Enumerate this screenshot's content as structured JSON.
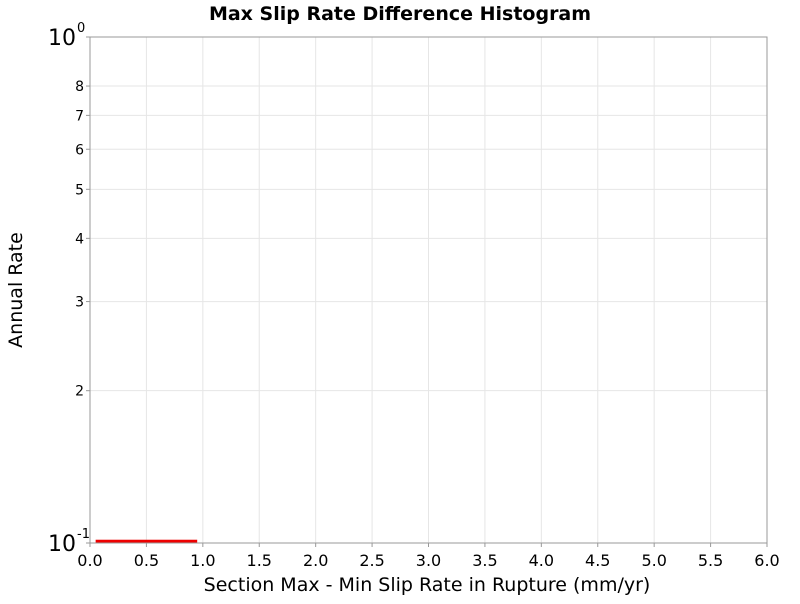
{
  "chart_data": {
    "type": "bar",
    "title": "Max Slip Rate Difference Histogram",
    "xlabel": "Section Max - Min Slip Rate in Rupture (mm/yr)",
    "ylabel": "Annual Rate",
    "xlim": [
      0.0,
      6.0
    ],
    "ylim": [
      0.1,
      1.0
    ],
    "yscale": "log",
    "x_ticks": [
      "0.0",
      "0.5",
      "1.0",
      "1.5",
      "2.0",
      "2.5",
      "3.0",
      "3.5",
      "4.0",
      "4.5",
      "5.0",
      "5.5",
      "6.0"
    ],
    "y_ticks": [
      {
        "value": 0.1,
        "base": "10",
        "exp": "-1"
      },
      {
        "value": 1.0,
        "base": "10",
        "exp": "0"
      }
    ],
    "y_minor_ticks": [
      {
        "value": 0.2,
        "label": "2"
      },
      {
        "value": 0.3,
        "label": "3"
      },
      {
        "value": 0.4,
        "label": "4"
      },
      {
        "value": 0.5,
        "label": "5"
      },
      {
        "value": 0.6,
        "label": "6"
      },
      {
        "value": 0.7,
        "label": "7"
      },
      {
        "value": 0.8,
        "label": "8"
      }
    ],
    "grid": true,
    "series": [
      {
        "color": "#ee0000",
        "bins": [
          {
            "x0": 0.05,
            "x1": 0.95,
            "value": 0.1015
          }
        ]
      }
    ]
  }
}
